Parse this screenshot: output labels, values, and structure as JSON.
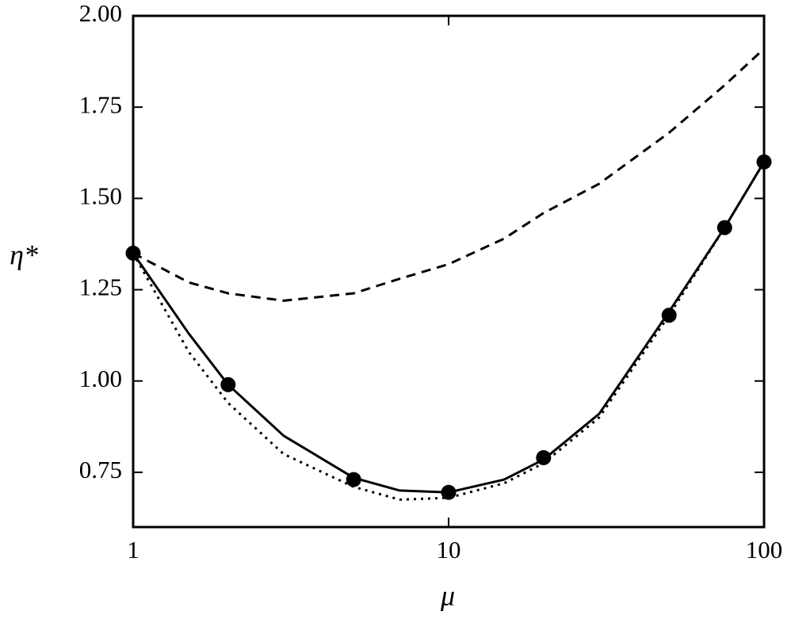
{
  "chart_data": {
    "type": "line",
    "xlabel": "μ",
    "ylabel": "η*",
    "xscale": "log",
    "xlim": [
      1,
      100
    ],
    "xticks": [
      1,
      10,
      100
    ],
    "ylim": [
      0.6,
      2.0
    ],
    "yticks": [
      {
        "value": 0.75,
        "label": "0.75"
      },
      {
        "value": 1.0,
        "label": "1.00"
      },
      {
        "value": 1.25,
        "label": "1.25"
      },
      {
        "value": 1.5,
        "label": "1.50"
      },
      {
        "value": 1.75,
        "label": "1.75"
      },
      {
        "value": 2.0,
        "label": "2.00"
      }
    ],
    "series": [
      {
        "style": "solid",
        "color": "#000000",
        "x": [
          1,
          1.5,
          2,
          3,
          5,
          7,
          10,
          15,
          20,
          30,
          50,
          75,
          100
        ],
        "values": [
          1.35,
          1.13,
          0.99,
          0.85,
          0.735,
          0.7,
          0.695,
          0.73,
          0.785,
          0.91,
          1.19,
          1.42,
          1.6
        ]
      },
      {
        "style": "dotted",
        "color": "#000000",
        "x": [
          1,
          1.5,
          2,
          3,
          5,
          7,
          10,
          15,
          20,
          30,
          50,
          75,
          100
        ],
        "values": [
          1.35,
          1.08,
          0.94,
          0.8,
          0.71,
          0.675,
          0.68,
          0.72,
          0.775,
          0.9,
          1.18,
          1.42,
          1.6
        ]
      },
      {
        "style": "dashed",
        "color": "#000000",
        "x": [
          1,
          1.5,
          2,
          3,
          5,
          7,
          10,
          15,
          20,
          30,
          50,
          75,
          100
        ],
        "values": [
          1.35,
          1.27,
          1.24,
          1.22,
          1.24,
          1.28,
          1.32,
          1.39,
          1.46,
          1.54,
          1.68,
          1.81,
          1.91
        ]
      },
      {
        "style": "markers",
        "color": "#000000",
        "x": [
          1,
          2,
          5,
          10,
          20,
          50,
          75,
          100
        ],
        "values": [
          1.35,
          0.99,
          0.73,
          0.695,
          0.79,
          1.18,
          1.42,
          1.6
        ]
      }
    ]
  }
}
